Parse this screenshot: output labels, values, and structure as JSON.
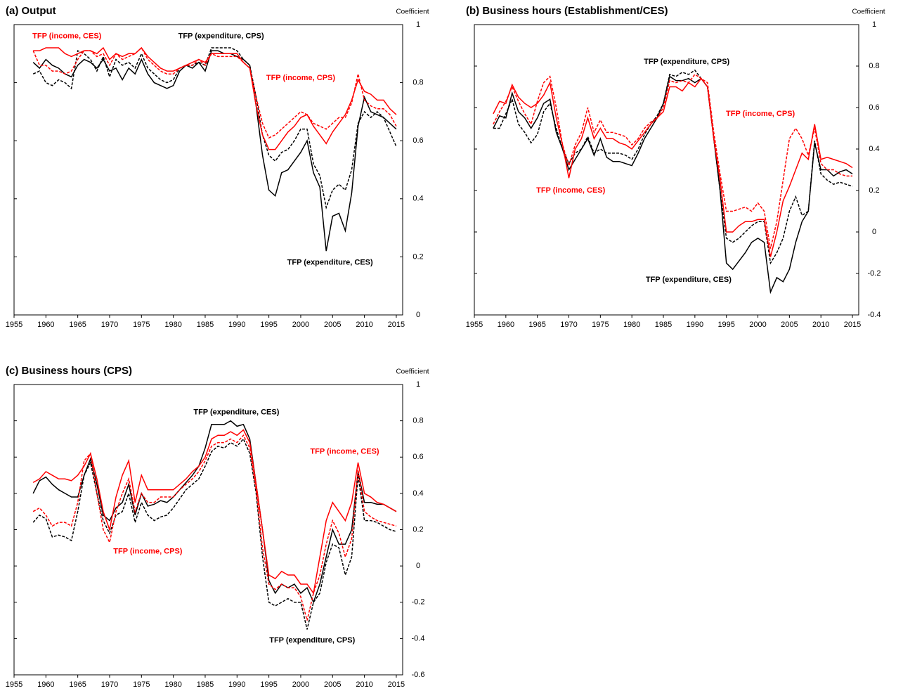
{
  "chart_data": [
    {
      "type": "line",
      "title": "(a) Output",
      "y_label": "Coefficient",
      "x": [
        1958,
        1959,
        1960,
        1961,
        1962,
        1963,
        1964,
        1965,
        1966,
        1967,
        1968,
        1969,
        1970,
        1971,
        1972,
        1973,
        1974,
        1975,
        1976,
        1977,
        1978,
        1979,
        1980,
        1981,
        1982,
        1983,
        1984,
        1985,
        1986,
        1987,
        1988,
        1989,
        1990,
        1991,
        1992,
        1993,
        1994,
        1995,
        1996,
        1997,
        1998,
        1999,
        2000,
        2001,
        2002,
        2003,
        2004,
        2005,
        2006,
        2007,
        2008,
        2009,
        2010,
        2011,
        2012,
        2013,
        2014,
        2015
      ],
      "xlim": [
        1955,
        2016
      ],
      "xticks": [
        1955,
        1960,
        1965,
        1970,
        1975,
        1980,
        1985,
        1990,
        1995,
        2000,
        2005,
        2010,
        2015
      ],
      "ylim": [
        0,
        1
      ],
      "yticks": [
        0,
        0.2,
        0.4,
        0.6,
        0.8,
        1
      ],
      "series": [
        {
          "name": "TFP (expenditure, CES)",
          "color": "#000000",
          "dashed": false,
          "values": [
            0.87,
            0.85,
            0.88,
            0.86,
            0.85,
            0.83,
            0.82,
            0.86,
            0.88,
            0.87,
            0.85,
            0.88,
            0.84,
            0.85,
            0.81,
            0.85,
            0.83,
            0.88,
            0.83,
            0.8,
            0.79,
            0.78,
            0.79,
            0.84,
            0.86,
            0.85,
            0.87,
            0.84,
            0.91,
            0.91,
            0.9,
            0.9,
            0.89,
            0.88,
            0.86,
            0.72,
            0.55,
            0.43,
            0.41,
            0.49,
            0.5,
            0.53,
            0.56,
            0.6,
            0.49,
            0.44,
            0.22,
            0.34,
            0.35,
            0.29,
            0.42,
            0.65,
            0.75,
            0.7,
            0.69,
            0.68,
            0.66,
            0.64
          ]
        },
        {
          "name": "TFP (expenditure, CPS)",
          "color": "#000000",
          "dashed": true,
          "values": [
            0.83,
            0.84,
            0.8,
            0.79,
            0.81,
            0.8,
            0.78,
            0.91,
            0.9,
            0.88,
            0.84,
            0.89,
            0.82,
            0.88,
            0.86,
            0.87,
            0.85,
            0.9,
            0.85,
            0.83,
            0.81,
            0.8,
            0.81,
            0.85,
            0.86,
            0.86,
            0.87,
            0.86,
            0.92,
            0.92,
            0.92,
            0.92,
            0.91,
            0.88,
            0.86,
            0.75,
            0.62,
            0.55,
            0.53,
            0.56,
            0.57,
            0.6,
            0.64,
            0.64,
            0.52,
            0.48,
            0.37,
            0.43,
            0.45,
            0.43,
            0.5,
            0.66,
            0.7,
            0.68,
            0.7,
            0.68,
            0.63,
            0.58
          ]
        },
        {
          "name": "TFP (income, CES)",
          "color": "#ff0000",
          "dashed": false,
          "values": [
            0.91,
            0.91,
            0.92,
            0.92,
            0.92,
            0.9,
            0.89,
            0.9,
            0.91,
            0.91,
            0.9,
            0.92,
            0.88,
            0.9,
            0.89,
            0.9,
            0.9,
            0.92,
            0.89,
            0.87,
            0.85,
            0.84,
            0.84,
            0.85,
            0.86,
            0.87,
            0.88,
            0.87,
            0.9,
            0.9,
            0.9,
            0.9,
            0.9,
            0.87,
            0.85,
            0.72,
            0.62,
            0.57,
            0.57,
            0.6,
            0.63,
            0.65,
            0.68,
            0.69,
            0.65,
            0.62,
            0.59,
            0.63,
            0.66,
            0.69,
            0.74,
            0.81,
            0.77,
            0.76,
            0.74,
            0.74,
            0.71,
            0.69
          ]
        },
        {
          "name": "TFP (income, CPS)",
          "color": "#ff0000",
          "dashed": true,
          "values": [
            0.91,
            0.86,
            0.86,
            0.84,
            0.84,
            0.83,
            0.84,
            0.88,
            0.91,
            0.91,
            0.89,
            0.9,
            0.86,
            0.9,
            0.88,
            0.89,
            0.9,
            0.92,
            0.88,
            0.86,
            0.84,
            0.83,
            0.83,
            0.85,
            0.86,
            0.86,
            0.88,
            0.86,
            0.9,
            0.89,
            0.89,
            0.89,
            0.89,
            0.87,
            0.85,
            0.75,
            0.66,
            0.61,
            0.62,
            0.64,
            0.66,
            0.68,
            0.7,
            0.69,
            0.66,
            0.65,
            0.64,
            0.66,
            0.68,
            0.68,
            0.73,
            0.83,
            0.74,
            0.72,
            0.71,
            0.71,
            0.69,
            0.65
          ]
        }
      ]
    },
    {
      "type": "line",
      "title": "(b) Business hours (Establishment/CES)",
      "y_label": "Coefficient",
      "x": [
        1958,
        1959,
        1960,
        1961,
        1962,
        1963,
        1964,
        1965,
        1966,
        1967,
        1968,
        1969,
        1970,
        1971,
        1972,
        1973,
        1974,
        1975,
        1976,
        1977,
        1978,
        1979,
        1980,
        1981,
        1982,
        1983,
        1984,
        1985,
        1986,
        1987,
        1988,
        1989,
        1990,
        1991,
        1992,
        1993,
        1994,
        1995,
        1996,
        1997,
        1998,
        1999,
        2000,
        2001,
        2002,
        2003,
        2004,
        2005,
        2006,
        2007,
        2008,
        2009,
        2010,
        2011,
        2012,
        2013,
        2014,
        2015
      ],
      "xlim": [
        1955,
        2016
      ],
      "xticks": [
        1955,
        1960,
        1965,
        1970,
        1975,
        1980,
        1985,
        1990,
        1995,
        2000,
        2005,
        2010,
        2015
      ],
      "ylim": [
        -0.4,
        1
      ],
      "yticks": [
        -0.4,
        -0.2,
        0,
        0.2,
        0.4,
        0.6,
        0.8,
        1
      ],
      "series": [
        {
          "name": "TFP (expenditure, CES)",
          "color": "#000000",
          "dashed": false,
          "values": [
            0.5,
            0.56,
            0.55,
            0.67,
            0.58,
            0.55,
            0.5,
            0.55,
            0.62,
            0.64,
            0.48,
            0.4,
            0.3,
            0.35,
            0.4,
            0.45,
            0.37,
            0.45,
            0.36,
            0.34,
            0.34,
            0.33,
            0.32,
            0.38,
            0.45,
            0.5,
            0.55,
            0.62,
            0.75,
            0.73,
            0.73,
            0.74,
            0.72,
            0.74,
            0.7,
            0.45,
            0.2,
            -0.15,
            -0.18,
            -0.14,
            -0.1,
            -0.05,
            -0.03,
            -0.05,
            -0.29,
            -0.22,
            -0.24,
            -0.18,
            -0.05,
            0.05,
            0.1,
            0.43,
            0.3,
            0.3,
            0.27,
            0.29,
            0.3,
            0.28
          ]
        },
        {
          "name": "TFP (expenditure, CPS)",
          "color": "#000000",
          "dashed": true,
          "values": [
            0.5,
            0.5,
            0.57,
            0.64,
            0.52,
            0.48,
            0.43,
            0.47,
            0.58,
            0.62,
            0.5,
            0.4,
            0.33,
            0.38,
            0.4,
            0.46,
            0.38,
            0.4,
            0.38,
            0.38,
            0.38,
            0.37,
            0.35,
            0.4,
            0.47,
            0.52,
            0.56,
            0.62,
            0.76,
            0.75,
            0.77,
            0.76,
            0.78,
            0.74,
            0.7,
            0.45,
            0.2,
            -0.03,
            -0.05,
            -0.03,
            0.0,
            0.03,
            0.05,
            0.05,
            -0.15,
            -0.1,
            -0.03,
            0.1,
            0.17,
            0.08,
            0.1,
            0.44,
            0.28,
            0.25,
            0.23,
            0.24,
            0.23,
            0.22
          ]
        },
        {
          "name": "TFP (income, CES)",
          "color": "#ff0000",
          "dashed": false,
          "values": [
            0.57,
            0.63,
            0.62,
            0.71,
            0.65,
            0.62,
            0.6,
            0.62,
            0.66,
            0.72,
            0.55,
            0.42,
            0.26,
            0.4,
            0.45,
            0.55,
            0.45,
            0.5,
            0.45,
            0.45,
            0.43,
            0.42,
            0.4,
            0.44,
            0.48,
            0.52,
            0.55,
            0.58,
            0.7,
            0.7,
            0.68,
            0.72,
            0.7,
            0.74,
            0.7,
            0.45,
            0.25,
            0.0,
            0.0,
            0.03,
            0.05,
            0.05,
            0.06,
            0.06,
            -0.12,
            0.0,
            0.15,
            0.22,
            0.3,
            0.38,
            0.35,
            0.52,
            0.35,
            0.36,
            0.35,
            0.34,
            0.33,
            0.31
          ]
        },
        {
          "name": "TFP (income, CPS)",
          "color": "#ff0000",
          "dashed": true,
          "values": [
            0.52,
            0.58,
            0.63,
            0.7,
            0.63,
            0.57,
            0.52,
            0.63,
            0.72,
            0.75,
            0.6,
            0.42,
            0.32,
            0.42,
            0.48,
            0.6,
            0.48,
            0.54,
            0.48,
            0.48,
            0.47,
            0.46,
            0.42,
            0.45,
            0.5,
            0.53,
            0.55,
            0.6,
            0.73,
            0.72,
            0.73,
            0.72,
            0.76,
            0.74,
            0.72,
            0.48,
            0.28,
            0.1,
            0.1,
            0.11,
            0.12,
            0.1,
            0.14,
            0.1,
            -0.08,
            0.05,
            0.25,
            0.45,
            0.5,
            0.45,
            0.37,
            0.5,
            0.33,
            0.3,
            0.3,
            0.28,
            0.27,
            0.27
          ]
        }
      ]
    },
    {
      "type": "line",
      "title": "(c) Business hours (CPS)",
      "y_label": "Coefficient",
      "x": [
        1958,
        1959,
        1960,
        1961,
        1962,
        1963,
        1964,
        1965,
        1966,
        1967,
        1968,
        1969,
        1970,
        1971,
        1972,
        1973,
        1974,
        1975,
        1976,
        1977,
        1978,
        1979,
        1980,
        1981,
        1982,
        1983,
        1984,
        1985,
        1986,
        1987,
        1988,
        1989,
        1990,
        1991,
        1992,
        1993,
        1994,
        1995,
        1996,
        1997,
        1998,
        1999,
        2000,
        2001,
        2002,
        2003,
        2004,
        2005,
        2006,
        2007,
        2008,
        2009,
        2010,
        2011,
        2012,
        2013,
        2014,
        2015
      ],
      "xlim": [
        1955,
        2016
      ],
      "xticks": [
        1955,
        1960,
        1965,
        1970,
        1975,
        1980,
        1985,
        1990,
        1995,
        2000,
        2005,
        2010,
        2015
      ],
      "ylim": [
        -0.6,
        1
      ],
      "yticks": [
        -0.6,
        -0.4,
        -0.2,
        0,
        0.2,
        0.4,
        0.6,
        0.8,
        1
      ],
      "series": [
        {
          "name": "TFP (expenditure, CES)",
          "color": "#000000",
          "dashed": false,
          "values": [
            0.4,
            0.47,
            0.49,
            0.45,
            0.42,
            0.4,
            0.38,
            0.38,
            0.5,
            0.59,
            0.45,
            0.28,
            0.25,
            0.32,
            0.35,
            0.45,
            0.28,
            0.4,
            0.33,
            0.34,
            0.36,
            0.35,
            0.38,
            0.42,
            0.46,
            0.5,
            0.55,
            0.65,
            0.78,
            0.78,
            0.78,
            0.8,
            0.77,
            0.78,
            0.7,
            0.45,
            0.2,
            -0.08,
            -0.15,
            -0.1,
            -0.12,
            -0.1,
            -0.15,
            -0.12,
            -0.2,
            -0.1,
            0.05,
            0.2,
            0.12,
            0.12,
            0.2,
            0.52,
            0.35,
            0.35,
            0.34,
            0.34,
            0.32,
            0.3
          ]
        },
        {
          "name": "TFP (expenditure, CPS)",
          "color": "#000000",
          "dashed": true,
          "values": [
            0.24,
            0.28,
            0.26,
            0.16,
            0.17,
            0.16,
            0.14,
            0.3,
            0.5,
            0.57,
            0.4,
            0.25,
            0.18,
            0.28,
            0.3,
            0.4,
            0.24,
            0.35,
            0.28,
            0.25,
            0.27,
            0.28,
            0.32,
            0.37,
            0.42,
            0.45,
            0.48,
            0.55,
            0.63,
            0.66,
            0.65,
            0.68,
            0.66,
            0.7,
            0.62,
            0.4,
            0.05,
            -0.2,
            -0.22,
            -0.2,
            -0.18,
            -0.2,
            -0.2,
            -0.35,
            -0.2,
            -0.15,
            0.02,
            0.12,
            0.1,
            -0.05,
            0.05,
            0.5,
            0.25,
            0.25,
            0.24,
            0.22,
            0.2,
            0.19
          ]
        },
        {
          "name": "TFP (income, CES)",
          "color": "#ff0000",
          "dashed": false,
          "values": [
            0.46,
            0.48,
            0.52,
            0.5,
            0.48,
            0.48,
            0.47,
            0.5,
            0.55,
            0.62,
            0.48,
            0.3,
            0.2,
            0.38,
            0.5,
            0.58,
            0.35,
            0.5,
            0.42,
            0.42,
            0.42,
            0.42,
            0.42,
            0.45,
            0.48,
            0.52,
            0.55,
            0.6,
            0.7,
            0.72,
            0.72,
            0.74,
            0.72,
            0.75,
            0.68,
            0.45,
            0.2,
            -0.05,
            -0.07,
            -0.03,
            -0.05,
            -0.05,
            -0.1,
            -0.1,
            -0.15,
            0.05,
            0.25,
            0.35,
            0.3,
            0.25,
            0.35,
            0.57,
            0.4,
            0.38,
            0.35,
            0.34,
            0.32,
            0.3
          ]
        },
        {
          "name": "TFP (income, CPS)",
          "color": "#ff0000",
          "dashed": true,
          "values": [
            0.3,
            0.32,
            0.28,
            0.22,
            0.24,
            0.24,
            0.22,
            0.35,
            0.58,
            0.62,
            0.4,
            0.2,
            0.13,
            0.3,
            0.4,
            0.48,
            0.3,
            0.4,
            0.35,
            0.35,
            0.38,
            0.38,
            0.38,
            0.42,
            0.45,
            0.48,
            0.52,
            0.58,
            0.66,
            0.68,
            0.68,
            0.7,
            0.68,
            0.72,
            0.65,
            0.42,
            0.1,
            -0.1,
            -0.13,
            -0.1,
            -0.12,
            -0.12,
            -0.17,
            -0.3,
            -0.15,
            -0.05,
            0.12,
            0.25,
            0.18,
            0.05,
            0.15,
            0.53,
            0.3,
            0.27,
            0.25,
            0.24,
            0.23,
            0.22
          ]
        }
      ]
    }
  ]
}
